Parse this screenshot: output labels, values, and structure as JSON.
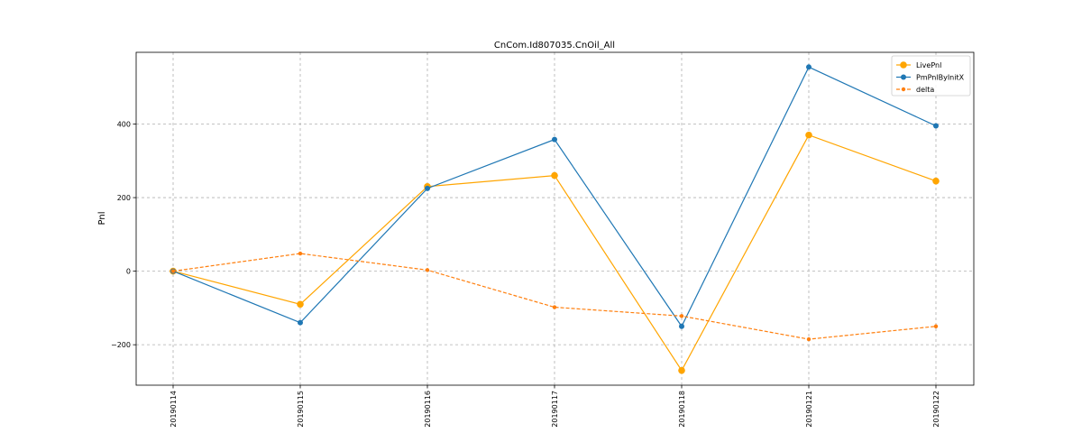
{
  "chart_data": {
    "type": "line",
    "title": "CnCom.Id807035.CnOil_All",
    "xlabel": "",
    "ylabel": "Pnl",
    "categories": [
      "20190114",
      "20190115",
      "20190116",
      "20190117",
      "20190118",
      "20190121",
      "20190122"
    ],
    "ylim": [
      -310,
      595
    ],
    "yticks": [
      -200,
      0,
      200,
      400
    ],
    "grid": true,
    "legend_position": "top-right",
    "series": [
      {
        "name": "LivePnl",
        "values": [
          0,
          -90,
          230,
          260,
          -270,
          370,
          245
        ],
        "color": "#ffa500",
        "line_style": "solid",
        "marker": "circle-large"
      },
      {
        "name": "PmPnlByInitX",
        "values": [
          0,
          -140,
          225,
          358,
          -150,
          555,
          395
        ],
        "color": "#1f77b4",
        "line_style": "solid",
        "marker": "circle"
      },
      {
        "name": "delta",
        "values": [
          0,
          48,
          3,
          -98,
          -122,
          -185,
          -150
        ],
        "color": "#ff7f0e",
        "line_style": "dashed",
        "marker": "circle-small"
      }
    ]
  }
}
